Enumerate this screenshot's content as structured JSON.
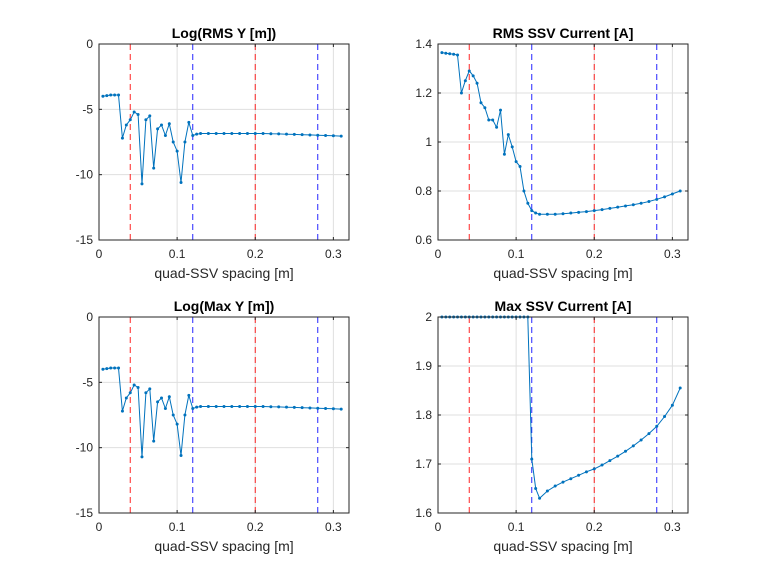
{
  "colors": {
    "series": "#0072BD",
    "red_line": "#FF0000",
    "blue_line": "#0000FF",
    "grid": "#DFDFDF",
    "axes": "#262626"
  },
  "chart_data": [
    {
      "type": "line",
      "title": "Log(RMS Y [m])",
      "xlabel": "quad-SSV spacing [m]",
      "ylabel": "",
      "xlim": [
        0,
        0.32
      ],
      "ylim": [
        -15,
        0
      ],
      "xticks": [
        0,
        0.1,
        0.2,
        0.3
      ],
      "xtick_labels": [
        "0",
        "0.1",
        "0.2",
        "0.3"
      ],
      "yticks": [
        -15,
        -10,
        -5,
        0
      ],
      "ytick_labels": [
        "-15",
        "-10",
        "-5",
        "0"
      ],
      "grid": true,
      "vlines": [
        {
          "x": 0.04,
          "color": "red",
          "style": "dashed"
        },
        {
          "x": 0.2,
          "color": "red",
          "style": "dashed"
        },
        {
          "x": 0.12,
          "color": "blue",
          "style": "dashed"
        },
        {
          "x": 0.28,
          "color": "blue",
          "style": "dashed"
        }
      ],
      "series": [
        {
          "x": [
            0.005,
            0.01,
            0.015,
            0.02,
            0.025,
            0.03,
            0.035,
            0.04,
            0.045,
            0.05,
            0.055,
            0.06,
            0.065,
            0.07,
            0.075,
            0.08,
            0.085,
            0.09,
            0.095,
            0.1,
            0.105,
            0.11,
            0.115,
            0.12,
            0.125,
            0.13,
            0.14,
            0.15,
            0.16,
            0.17,
            0.18,
            0.19,
            0.2,
            0.21,
            0.22,
            0.23,
            0.24,
            0.25,
            0.26,
            0.27,
            0.28,
            0.29,
            0.3,
            0.31
          ],
          "y": [
            -4.0,
            -3.95,
            -3.9,
            -3.9,
            -3.9,
            -7.2,
            -6.2,
            -5.8,
            -5.2,
            -5.4,
            -10.7,
            -5.8,
            -5.5,
            -9.5,
            -6.5,
            -6.2,
            -7.0,
            -6.1,
            -7.5,
            -8.2,
            -10.6,
            -7.5,
            -6.0,
            -7.0,
            -6.9,
            -6.85,
            -6.85,
            -6.85,
            -6.85,
            -6.85,
            -6.85,
            -6.85,
            -6.85,
            -6.85,
            -6.87,
            -6.88,
            -6.9,
            -6.92,
            -6.94,
            -6.96,
            -6.98,
            -7.0,
            -7.02,
            -7.05
          ]
        }
      ]
    },
    {
      "type": "line",
      "title": "RMS SSV Current [A]",
      "xlabel": "quad-SSV spacing [m]",
      "ylabel": "",
      "xlim": [
        0,
        0.32
      ],
      "ylim": [
        0.6,
        1.4
      ],
      "xticks": [
        0,
        0.1,
        0.2,
        0.3
      ],
      "xtick_labels": [
        "0",
        "0.1",
        "0.2",
        "0.3"
      ],
      "yticks": [
        0.6,
        0.8,
        1.0,
        1.2,
        1.4
      ],
      "ytick_labels": [
        "0.6",
        "0.8",
        "1",
        "1.2",
        "1.4"
      ],
      "grid": true,
      "vlines": [
        {
          "x": 0.04,
          "color": "red",
          "style": "dashed"
        },
        {
          "x": 0.2,
          "color": "red",
          "style": "dashed"
        },
        {
          "x": 0.12,
          "color": "blue",
          "style": "dashed"
        },
        {
          "x": 0.28,
          "color": "blue",
          "style": "dashed"
        }
      ],
      "series": [
        {
          "x": [
            0.005,
            0.01,
            0.015,
            0.02,
            0.025,
            0.03,
            0.035,
            0.04,
            0.045,
            0.05,
            0.055,
            0.06,
            0.065,
            0.07,
            0.075,
            0.08,
            0.085,
            0.09,
            0.095,
            0.1,
            0.105,
            0.11,
            0.115,
            0.12,
            0.125,
            0.13,
            0.14,
            0.15,
            0.16,
            0.17,
            0.18,
            0.19,
            0.2,
            0.21,
            0.22,
            0.23,
            0.24,
            0.25,
            0.26,
            0.27,
            0.28,
            0.29,
            0.3,
            0.31
          ],
          "y": [
            1.365,
            1.362,
            1.36,
            1.358,
            1.355,
            1.2,
            1.25,
            1.29,
            1.27,
            1.24,
            1.16,
            1.14,
            1.09,
            1.09,
            1.06,
            1.13,
            0.95,
            1.03,
            0.98,
            0.92,
            0.9,
            0.8,
            0.75,
            0.72,
            0.71,
            0.705,
            0.705,
            0.705,
            0.707,
            0.71,
            0.713,
            0.716,
            0.72,
            0.724,
            0.729,
            0.734,
            0.739,
            0.744,
            0.75,
            0.757,
            0.766,
            0.776,
            0.788,
            0.8
          ]
        }
      ]
    },
    {
      "type": "line",
      "title": "Log(Max Y [m])",
      "xlabel": "quad-SSV spacing [m]",
      "ylabel": "",
      "xlim": [
        0,
        0.32
      ],
      "ylim": [
        -15,
        0
      ],
      "xticks": [
        0,
        0.1,
        0.2,
        0.3
      ],
      "xtick_labels": [
        "0",
        "0.1",
        "0.2",
        "0.3"
      ],
      "yticks": [
        -15,
        -10,
        -5,
        0
      ],
      "ytick_labels": [
        "-15",
        "-10",
        "-5",
        "0"
      ],
      "grid": true,
      "vlines": [
        {
          "x": 0.04,
          "color": "red",
          "style": "dashed"
        },
        {
          "x": 0.2,
          "color": "red",
          "style": "dashed"
        },
        {
          "x": 0.12,
          "color": "blue",
          "style": "dashed"
        },
        {
          "x": 0.28,
          "color": "blue",
          "style": "dashed"
        }
      ],
      "series": [
        {
          "x": [
            0.005,
            0.01,
            0.015,
            0.02,
            0.025,
            0.03,
            0.035,
            0.04,
            0.045,
            0.05,
            0.055,
            0.06,
            0.065,
            0.07,
            0.075,
            0.08,
            0.085,
            0.09,
            0.095,
            0.1,
            0.105,
            0.11,
            0.115,
            0.12,
            0.125,
            0.13,
            0.14,
            0.15,
            0.16,
            0.17,
            0.18,
            0.19,
            0.2,
            0.21,
            0.22,
            0.23,
            0.24,
            0.25,
            0.26,
            0.27,
            0.28,
            0.29,
            0.3,
            0.31
          ],
          "y": [
            -4.0,
            -3.95,
            -3.9,
            -3.9,
            -3.9,
            -7.2,
            -6.2,
            -5.8,
            -5.2,
            -5.4,
            -10.7,
            -5.8,
            -5.5,
            -9.5,
            -6.5,
            -6.2,
            -7.0,
            -6.1,
            -7.5,
            -8.2,
            -10.6,
            -7.5,
            -6.0,
            -7.0,
            -6.9,
            -6.85,
            -6.85,
            -6.85,
            -6.85,
            -6.85,
            -6.85,
            -6.85,
            -6.85,
            -6.85,
            -6.87,
            -6.88,
            -6.9,
            -6.92,
            -6.94,
            -6.96,
            -6.98,
            -7.0,
            -7.02,
            -7.05
          ]
        }
      ]
    },
    {
      "type": "line",
      "title": "Max SSV Current [A]",
      "xlabel": "quad-SSV spacing [m]",
      "ylabel": "",
      "xlim": [
        0,
        0.32
      ],
      "ylim": [
        1.6,
        2.0
      ],
      "xticks": [
        0,
        0.1,
        0.2,
        0.3
      ],
      "xtick_labels": [
        "0",
        "0.1",
        "0.2",
        "0.3"
      ],
      "yticks": [
        1.6,
        1.7,
        1.8,
        1.9,
        2.0
      ],
      "ytick_labels": [
        "1.6",
        "1.7",
        "1.8",
        "1.9",
        "2"
      ],
      "grid": true,
      "vlines": [
        {
          "x": 0.04,
          "color": "red",
          "style": "dashed"
        },
        {
          "x": 0.2,
          "color": "red",
          "style": "dashed"
        },
        {
          "x": 0.12,
          "color": "blue",
          "style": "dashed"
        },
        {
          "x": 0.28,
          "color": "blue",
          "style": "dashed"
        }
      ],
      "series": [
        {
          "x": [
            0.005,
            0.01,
            0.015,
            0.02,
            0.025,
            0.03,
            0.035,
            0.04,
            0.045,
            0.05,
            0.055,
            0.06,
            0.065,
            0.07,
            0.075,
            0.08,
            0.085,
            0.09,
            0.095,
            0.1,
            0.105,
            0.11,
            0.115,
            0.12,
            0.125,
            0.13,
            0.14,
            0.15,
            0.16,
            0.17,
            0.18,
            0.19,
            0.2,
            0.21,
            0.22,
            0.23,
            0.24,
            0.25,
            0.26,
            0.27,
            0.28,
            0.29,
            0.3,
            0.31
          ],
          "y": [
            2.0,
            2.0,
            2.0,
            2.0,
            2.0,
            2.0,
            2.0,
            2.0,
            2.0,
            2.0,
            2.0,
            2.0,
            2.0,
            2.0,
            2.0,
            2.0,
            2.0,
            2.0,
            2.0,
            2.0,
            2.0,
            2.0,
            2.0,
            1.71,
            1.65,
            1.63,
            1.645,
            1.655,
            1.663,
            1.67,
            1.677,
            1.684,
            1.69,
            1.698,
            1.707,
            1.716,
            1.726,
            1.737,
            1.749,
            1.762,
            1.777,
            1.797,
            1.82,
            1.855
          ]
        }
      ]
    }
  ]
}
